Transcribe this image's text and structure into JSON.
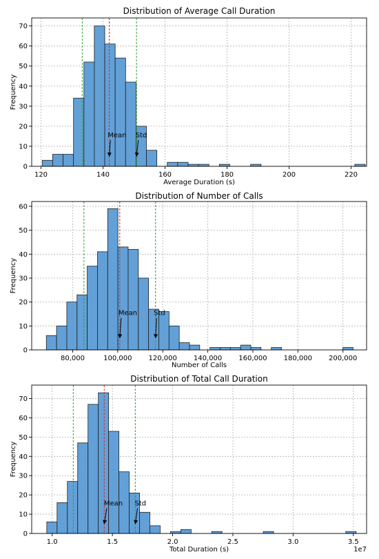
{
  "chart_data": [
    {
      "type": "histogram",
      "title": "Distribution of Average Call Duration",
      "xlabel": "Average Duration (s)",
      "ylabel": "Frequency",
      "xlim": [
        117,
        225
      ],
      "ylim": [
        0,
        74
      ],
      "xticks": [
        120,
        140,
        160,
        180,
        200,
        220
      ],
      "xtick_labels": [
        "120",
        "140",
        "160",
        "180",
        "200",
        "220"
      ],
      "yticks": [
        0,
        10,
        20,
        30,
        40,
        50,
        60,
        70
      ],
      "ytick_labels": [
        "0",
        "10",
        "20",
        "30",
        "40",
        "50",
        "60",
        "70"
      ],
      "bins": {
        "start": 120.4,
        "width": 3.36,
        "counts": [
          3,
          6,
          6,
          34,
          52,
          70,
          61,
          54,
          42,
          20,
          8,
          0,
          2,
          2,
          1,
          1,
          0,
          1,
          0,
          0,
          1,
          0,
          0,
          0,
          0,
          0,
          0,
          0,
          0,
          0,
          1
        ]
      },
      "mean": 142.0,
      "std_lines": [
        133.3,
        150.8
      ],
      "annotations": [
        {
          "text": "Mean",
          "text_x": 141.5,
          "text_y": 14.5,
          "arrow_x": 142.0,
          "arrow_y": 5
        },
        {
          "text": "Std",
          "text_x": 150.5,
          "text_y": 14.5,
          "arrow_x": 150.8,
          "arrow_y": 5
        }
      ],
      "grid": true,
      "colors": {
        "bars": "#5b9bd5",
        "mean_line": "#d62728",
        "std_line": "#2ca02c"
      }
    },
    {
      "type": "histogram",
      "title": "Distribution of Number of Calls",
      "xlabel": "Number of Calls",
      "ylabel": "Frequency",
      "xlim": [
        61800,
        210500
      ],
      "ylim": [
        0,
        62
      ],
      "xticks": [
        80000,
        100000,
        120000,
        140000,
        160000,
        180000,
        200000
      ],
      "xtick_labels": [
        "80,000",
        "100,000",
        "120,000",
        "140,000",
        "160,000",
        "180,000",
        "200,000"
      ],
      "yticks": [
        0,
        10,
        20,
        30,
        40,
        50,
        60
      ],
      "ytick_labels": [
        "0",
        "10",
        "20",
        "30",
        "40",
        "50",
        "60"
      ],
      "bins": {
        "start": 68300,
        "width": 4540,
        "counts": [
          6,
          10,
          20,
          23,
          35,
          41,
          59,
          43,
          42,
          30,
          17,
          16,
          10,
          3,
          2,
          0,
          1,
          1,
          1,
          2,
          1,
          0,
          1,
          0,
          0,
          0,
          0,
          0,
          0,
          1
        ]
      },
      "mean": 100900,
      "std_lines": [
        85000,
        116800
      ],
      "annotations": [
        {
          "text": "Mean",
          "text_x": 100300,
          "text_y": 14.5,
          "arrow_x": 100900,
          "arrow_y": 5
        },
        {
          "text": "Std",
          "text_x": 116000,
          "text_y": 14.5,
          "arrow_x": 116800,
          "arrow_y": 5
        }
      ],
      "grid": true,
      "colors": {
        "bars": "#5b9bd5",
        "mean_line": "#d62728",
        "std_line": "#2ca02c"
      }
    },
    {
      "type": "histogram",
      "title": "Distribution of Total Call Duration",
      "xlabel": "Total Duration (s)",
      "ylabel": "Frequency",
      "axis_multiplier": "1e7",
      "xlim": [
        0.83,
        3.61
      ],
      "ylim": [
        0,
        77
      ],
      "xticks": [
        1.0,
        1.5,
        2.0,
        2.5,
        3.0,
        3.5
      ],
      "xtick_labels": [
        "1.0",
        "1.5",
        "2.0",
        "2.5",
        "3.0",
        "3.5"
      ],
      "yticks": [
        0,
        10,
        20,
        30,
        40,
        50,
        60,
        70
      ],
      "ytick_labels": [
        "0",
        "10",
        "20",
        "30",
        "40",
        "50",
        "60",
        "70"
      ],
      "bins": {
        "start": 0.955,
        "width": 0.0856,
        "counts": [
          6,
          16,
          27,
          47,
          67,
          73,
          53,
          32,
          21,
          11,
          4,
          0,
          1,
          2,
          0,
          0,
          1,
          0,
          0,
          0,
          0,
          1,
          0,
          0,
          0,
          0,
          0,
          0,
          0,
          1
        ]
      },
      "mean": 1.432,
      "std_lines": [
        1.175,
        1.69
      ],
      "annotations": [
        {
          "text": "Mean",
          "text_x": 1.43,
          "text_y": 14.5,
          "arrow_x": 1.432,
          "arrow_y": 5
        },
        {
          "text": "Std",
          "text_x": 1.685,
          "text_y": 14.5,
          "arrow_x": 1.69,
          "arrow_y": 5
        }
      ],
      "grid": true,
      "colors": {
        "bars": "#5b9bd5",
        "mean_line": "#d62728",
        "std_line": "#2ca02c"
      }
    }
  ]
}
